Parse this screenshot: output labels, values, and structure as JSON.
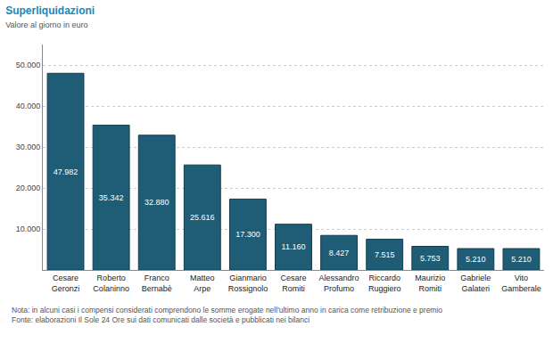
{
  "chart_data": {
    "type": "bar",
    "title": "Superliquidazioni",
    "subtitle": "Valore al giorno in euro",
    "categories": [
      "Cesare Geronzi",
      "Roberto Colaninno",
      "Franco Bernabè",
      "Matteo Arpe",
      "Gianmario Rossignolo",
      "Cesare Romiti",
      "Alessandro Profumo",
      "Riccardo Ruggiero",
      "Maurizio Romiti",
      "Gabriele Galateri",
      "Vito Gamberale"
    ],
    "values": [
      47982,
      35342,
      32880,
      25616,
      17300,
      11160,
      8427,
      7515,
      5753,
      5210,
      5210
    ],
    "value_labels": [
      "47.982",
      "35.342",
      "32.880",
      "25.616",
      "17.300",
      "11.160",
      "8.427",
      "7.515",
      "5.753",
      "5.210",
      "5.210"
    ],
    "color": "#1f5d77",
    "ylim": [
      0,
      55000
    ],
    "yticks": [
      {
        "value": 10000,
        "label": "10.000"
      },
      {
        "value": 20000,
        "label": "20.000"
      },
      {
        "value": 30000,
        "label": "30.000"
      },
      {
        "value": 40000,
        "label": "40.000"
      },
      {
        "value": 50000,
        "label": "50.000"
      }
    ],
    "grid": true,
    "data_labels": true,
    "annotations": [
      "Nota: in alcuni casi i compensi considerati comprendono le somme erogate nell'ultimo anno in carica come retribuzione e premio",
      "Fonte: elaborazioni Il Sole 24 Ore sui dati comunicati dalle società e pubblicati nei bilanci"
    ]
  }
}
